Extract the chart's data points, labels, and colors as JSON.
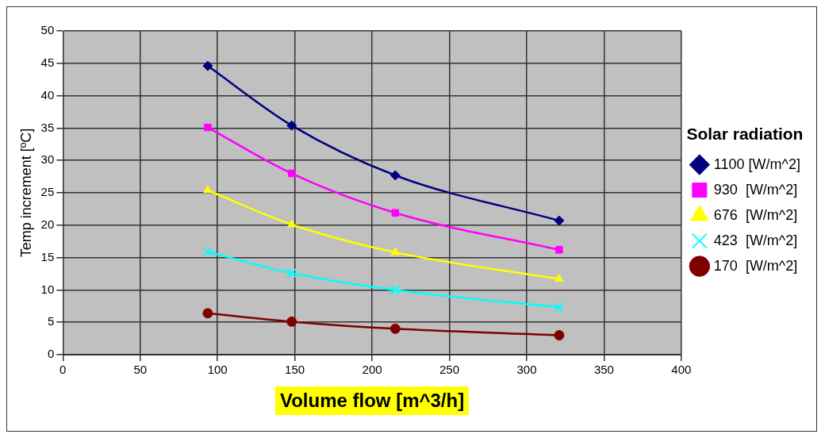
{
  "chart_data": {
    "type": "line",
    "xlabel": "Volume flow [m^3/h]",
    "ylabel": "Temp increment [ºC]",
    "legend_title": "Solar radiation",
    "x": [
      93.7,
      148,
      215,
      321
    ],
    "series": [
      {
        "name": "1100 [W/m^2]",
        "color": "#000080",
        "marker": "diamond",
        "values": [
          44.6,
          35.4,
          27.7,
          20.7
        ]
      },
      {
        "name": "930  [W/m^2]",
        "color": "#ff00ff",
        "marker": "square",
        "values": [
          35.1,
          28.0,
          21.9,
          16.2
        ]
      },
      {
        "name": "676  [W/m^2]",
        "color": "#ffff00",
        "marker": "triangle",
        "values": [
          25.4,
          20.1,
          15.8,
          11.7
        ]
      },
      {
        "name": "423  [W/m^2]",
        "color": "#00ffff",
        "marker": "cross",
        "values": [
          15.9,
          12.6,
          10.0,
          7.3
        ]
      },
      {
        "name": "170  [W/m^2]",
        "color": "#800000",
        "marker": "circle",
        "values": [
          6.4,
          5.1,
          4.0,
          3.0
        ]
      }
    ],
    "xlim": [
      0,
      400
    ],
    "xticks": [
      0,
      50,
      100,
      150,
      200,
      250,
      300,
      350,
      400
    ],
    "ylim": [
      0,
      50
    ],
    "yticks": [
      0,
      5,
      10,
      15,
      20,
      25,
      30,
      35,
      40,
      45,
      50
    ],
    "grid": true,
    "legend": "right",
    "line_style": "solid"
  }
}
